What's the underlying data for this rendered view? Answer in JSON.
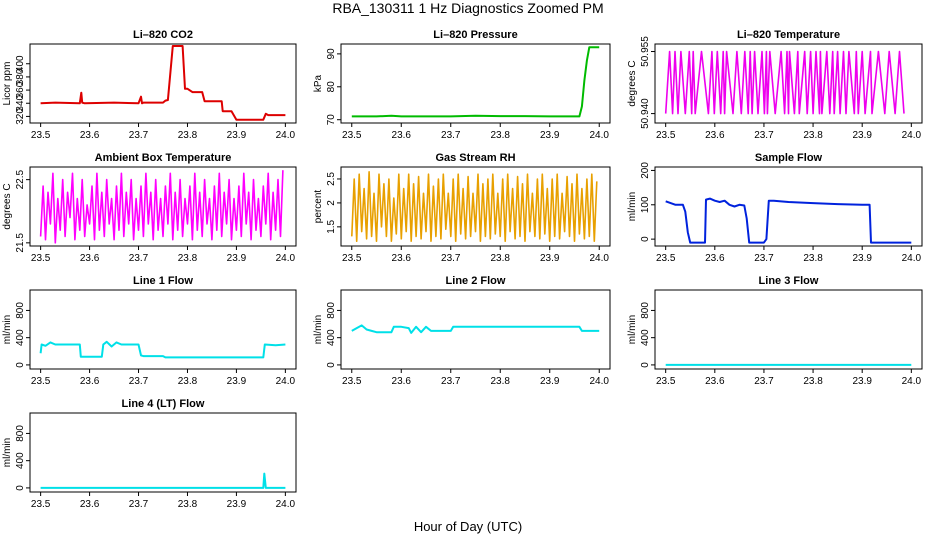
{
  "figure": {
    "title": "RBA_130311  1 Hz Diagnostics Zoomed PM",
    "xlabel": "Hour of Day (UTC)"
  },
  "chart_data": [
    {
      "type": "line",
      "title": "Li–820 CO2",
      "ylabel": "Licor ppm",
      "color": "#dd0000",
      "xlim": [
        23.5,
        24.0
      ],
      "ylim": [
        310,
        430
      ],
      "xticks": [
        "23.5",
        "23.6",
        "23.7",
        "23.8",
        "23.9",
        "24.0"
      ],
      "yticks": [
        320,
        340,
        360,
        380,
        400
      ],
      "x": [
        23.5,
        23.53,
        23.58,
        23.583,
        23.585,
        23.59,
        23.65,
        23.7,
        23.705,
        23.707,
        23.71,
        23.74,
        23.75,
        23.755,
        23.76,
        23.77,
        23.79,
        23.795,
        23.8,
        23.81,
        23.83,
        23.835,
        23.86,
        23.87,
        23.872,
        23.89,
        23.9,
        23.95,
        23.955,
        23.96,
        23.965,
        23.98,
        24.0
      ],
      "y": [
        340,
        341,
        340,
        356,
        341,
        340,
        341,
        340,
        350,
        340,
        341,
        341,
        341,
        344,
        345,
        427,
        427,
        362,
        362,
        357,
        357,
        343,
        343,
        343,
        328,
        328,
        315,
        315,
        315,
        324,
        322,
        322,
        322
      ]
    },
    {
      "type": "line",
      "title": "Li–820 Pressure",
      "ylabel": "kPa",
      "color": "#00bb00",
      "xlim": [
        23.5,
        24.0
      ],
      "ylim": [
        69,
        93
      ],
      "xticks": [
        "23.5",
        "23.6",
        "23.7",
        "23.8",
        "23.9",
        "24.0"
      ],
      "yticks": [
        70,
        80,
        90
      ],
      "x": [
        23.5,
        23.55,
        23.58,
        23.6,
        23.65,
        23.7,
        23.75,
        23.8,
        23.85,
        23.9,
        23.95,
        23.96,
        23.965,
        23.97,
        23.975,
        23.98,
        24.0
      ],
      "y": [
        71,
        71,
        71.2,
        71,
        71,
        71,
        71.2,
        71.1,
        71.1,
        71,
        71,
        71,
        74,
        82,
        88,
        92,
        92
      ]
    },
    {
      "type": "line",
      "title": "Li–820 Temperature",
      "ylabel": "degrees C",
      "color": "#ee00ee",
      "xlim": [
        23.5,
        24.0
      ],
      "ylim": [
        50.937,
        50.958
      ],
      "xticks": [
        "23.5",
        "23.6",
        "23.7",
        "23.8",
        "23.9",
        "24.0"
      ],
      "yticks": [
        "50.940",
        "50.955"
      ],
      "levels": [
        50.9395,
        50.956
      ],
      "x": [
        23.5,
        23.508,
        23.514,
        23.519,
        23.525,
        23.531,
        23.54,
        23.548,
        23.553,
        23.556,
        23.56,
        23.573,
        23.587,
        23.594,
        23.599,
        23.605,
        23.612,
        23.617,
        23.62,
        23.624,
        23.637,
        23.645,
        23.654,
        23.661,
        23.668,
        23.672,
        23.676,
        23.681,
        23.688,
        23.696,
        23.701,
        23.705,
        23.707,
        23.712,
        23.723,
        23.735,
        23.742,
        23.747,
        23.75,
        23.752,
        23.762,
        23.769,
        23.772,
        23.783,
        23.788,
        23.795,
        23.8,
        23.806,
        23.813,
        23.815,
        23.818,
        23.828,
        23.834,
        23.84,
        23.843,
        23.85,
        23.855,
        23.862,
        23.867,
        23.873,
        23.884,
        23.888,
        23.892,
        23.9,
        23.906,
        23.917,
        23.92,
        23.933,
        23.946,
        23.955,
        23.967,
        23.976,
        23.985
      ],
      "y": [
        50.9395,
        50.956,
        50.9395,
        50.956,
        50.9395,
        50.956,
        50.9395,
        50.956,
        50.9395,
        50.956,
        50.9395,
        50.956,
        50.9395,
        50.956,
        50.9395,
        50.956,
        50.9395,
        50.956,
        50.9395,
        50.956,
        50.9395,
        50.956,
        50.9395,
        50.956,
        50.9395,
        50.956,
        50.9395,
        50.956,
        50.9395,
        50.956,
        50.9395,
        50.956,
        50.9395,
        50.956,
        50.9395,
        50.956,
        50.9395,
        50.956,
        50.9395,
        50.956,
        50.9395,
        50.956,
        50.9395,
        50.956,
        50.9395,
        50.956,
        50.9395,
        50.956,
        50.9395,
        50.956,
        50.9395,
        50.956,
        50.9395,
        50.956,
        50.9395,
        50.956,
        50.9395,
        50.956,
        50.9395,
        50.956,
        50.9395,
        50.956,
        50.9395,
        50.956,
        50.9395,
        50.956,
        50.9395,
        50.956,
        50.9395,
        50.956,
        50.9395,
        50.956,
        50.9395
      ]
    },
    {
      "type": "line",
      "title": "Ambient Box Temperature",
      "ylabel": "degrees C",
      "color": "#ff00ff",
      "xlim": [
        23.5,
        24.0
      ],
      "ylim": [
        21.45,
        22.7
      ],
      "xticks": [
        "23.5",
        "23.6",
        "23.7",
        "23.8",
        "23.9",
        "24.0"
      ],
      "yticks": [
        21.5,
        22.5
      ],
      "x": [
        23.5,
        23.505,
        23.51,
        23.515,
        23.52,
        23.525,
        23.53,
        23.535,
        23.54,
        23.545,
        23.55,
        23.555,
        23.56,
        23.565,
        23.57,
        23.575,
        23.58,
        23.585,
        23.59,
        23.595,
        23.6,
        23.605,
        23.61,
        23.615,
        23.62,
        23.625,
        23.63,
        23.635,
        23.64,
        23.645,
        23.65,
        23.655,
        23.66,
        23.665,
        23.67,
        23.675,
        23.68,
        23.685,
        23.69,
        23.695,
        23.7,
        23.705,
        23.71,
        23.715,
        23.72,
        23.725,
        23.73,
        23.735,
        23.74,
        23.745,
        23.75,
        23.755,
        23.76,
        23.765,
        23.77,
        23.775,
        23.78,
        23.785,
        23.79,
        23.795,
        23.8,
        23.805,
        23.81,
        23.815,
        23.82,
        23.825,
        23.83,
        23.835,
        23.84,
        23.845,
        23.85,
        23.855,
        23.86,
        23.865,
        23.87,
        23.875,
        23.88,
        23.885,
        23.89,
        23.895,
        23.9,
        23.905,
        23.91,
        23.915,
        23.92,
        23.925,
        23.93,
        23.935,
        23.94,
        23.945,
        23.95,
        23.955,
        23.96,
        23.965,
        23.97,
        23.975,
        23.98,
        23.985,
        23.99,
        23.995
      ],
      "y": [
        21.6,
        22.4,
        21.55,
        22.3,
        21.8,
        22.6,
        21.5,
        22.2,
        21.7,
        22.5,
        21.6,
        22.3,
        21.9,
        22.6,
        21.55,
        22.2,
        21.7,
        22.5,
        21.6,
        22.1,
        21.8,
        22.4,
        21.55,
        22.6,
        21.7,
        22.3,
        21.6,
        22.5,
        21.8,
        22.2,
        21.55,
        22.4,
        21.7,
        22.6,
        21.6,
        22.3,
        21.8,
        22.5,
        21.55,
        22.2,
        21.7,
        22.4,
        21.6,
        22.6,
        21.8,
        22.3,
        21.55,
        22.5,
        21.7,
        22.2,
        21.6,
        22.4,
        21.8,
        22.6,
        21.55,
        22.3,
        21.7,
        22.5,
        21.6,
        22.2,
        21.8,
        22.4,
        21.55,
        22.6,
        21.7,
        22.3,
        21.6,
        22.5,
        21.8,
        22.2,
        21.55,
        22.4,
        21.7,
        22.6,
        21.6,
        22.3,
        21.8,
        22.5,
        21.55,
        22.2,
        21.7,
        22.4,
        21.6,
        22.6,
        21.8,
        22.3,
        21.55,
        22.5,
        21.7,
        22.2,
        21.6,
        22.4,
        21.8,
        22.6,
        21.55,
        22.3,
        21.7,
        22.5,
        21.6,
        22.65
      ]
    },
    {
      "type": "line",
      "title": "Gas Stream RH",
      "ylabel": "percent",
      "color": "#e8a000",
      "xlim": [
        23.5,
        24.0
      ],
      "ylim": [
        1.1,
        2.75
      ],
      "xticks": [
        "23.5",
        "23.6",
        "23.7",
        "23.8",
        "23.9",
        "24.0"
      ],
      "yticks": [
        1.5,
        2.0,
        2.5
      ],
      "x": [
        23.5,
        23.505,
        23.51,
        23.515,
        23.52,
        23.525,
        23.53,
        23.535,
        23.54,
        23.545,
        23.55,
        23.555,
        23.56,
        23.565,
        23.57,
        23.575,
        23.58,
        23.585,
        23.59,
        23.595,
        23.6,
        23.605,
        23.61,
        23.615,
        23.62,
        23.625,
        23.63,
        23.635,
        23.64,
        23.645,
        23.65,
        23.655,
        23.66,
        23.665,
        23.67,
        23.675,
        23.68,
        23.685,
        23.69,
        23.695,
        23.7,
        23.705,
        23.71,
        23.715,
        23.72,
        23.725,
        23.73,
        23.735,
        23.74,
        23.745,
        23.75,
        23.755,
        23.76,
        23.765,
        23.77,
        23.775,
        23.78,
        23.785,
        23.79,
        23.795,
        23.8,
        23.805,
        23.81,
        23.815,
        23.82,
        23.825,
        23.83,
        23.835,
        23.84,
        23.845,
        23.85,
        23.855,
        23.86,
        23.865,
        23.87,
        23.875,
        23.88,
        23.885,
        23.89,
        23.895,
        23.9,
        23.905,
        23.91,
        23.915,
        23.92,
        23.925,
        23.93,
        23.935,
        23.94,
        23.945,
        23.95,
        23.955,
        23.96,
        23.965,
        23.97,
        23.975,
        23.98,
        23.985,
        23.99,
        23.995
      ],
      "y": [
        1.3,
        2.5,
        1.2,
        2.6,
        1.4,
        2.3,
        1.25,
        2.65,
        1.3,
        2.2,
        1.2,
        2.6,
        1.5,
        2.4,
        1.3,
        2.5,
        1.2,
        2.1,
        1.35,
        2.6,
        1.25,
        2.3,
        1.4,
        2.6,
        1.2,
        2.4,
        1.3,
        2.55,
        1.25,
        2.2,
        1.4,
        2.6,
        1.2,
        2.35,
        1.3,
        2.5,
        1.25,
        2.6,
        1.45,
        2.2,
        1.3,
        2.5,
        1.2,
        2.6,
        1.35,
        2.3,
        1.25,
        2.55,
        1.3,
        2.2,
        1.4,
        2.6,
        1.2,
        2.4,
        1.3,
        2.5,
        1.25,
        2.6,
        1.35,
        2.2,
        1.3,
        2.5,
        1.2,
        2.6,
        1.4,
        2.3,
        1.25,
        2.55,
        1.3,
        2.4,
        1.2,
        2.6,
        1.4,
        2.2,
        1.3,
        2.5,
        1.25,
        2.6,
        1.35,
        2.3,
        1.2,
        2.5,
        1.3,
        2.6,
        1.25,
        2.2,
        1.4,
        2.55,
        1.3,
        2.4,
        1.2,
        2.6,
        1.35,
        2.3,
        1.25,
        2.5,
        1.3,
        2.6,
        1.2,
        2.45
      ]
    },
    {
      "type": "line",
      "title": "Sample Flow",
      "ylabel": "ml/min",
      "color": "#0022dd",
      "xlim": [
        23.5,
        24.0
      ],
      "ylim": [
        -20,
        210
      ],
      "xticks": [
        "23.5",
        "23.6",
        "23.7",
        "23.8",
        "23.9",
        "24.0"
      ],
      "yticks": [
        0,
        100,
        200
      ],
      "x": [
        23.5,
        23.51,
        23.52,
        23.535,
        23.54,
        23.545,
        23.55,
        23.58,
        23.582,
        23.59,
        23.6,
        23.61,
        23.62,
        23.63,
        23.64,
        23.65,
        23.66,
        23.665,
        23.67,
        23.7,
        23.705,
        23.71,
        23.72,
        23.75,
        23.8,
        23.85,
        23.9,
        23.915,
        23.918,
        23.95,
        24.0
      ],
      "y": [
        110,
        105,
        100,
        100,
        80,
        20,
        -10,
        -10,
        115,
        118,
        112,
        108,
        112,
        100,
        95,
        100,
        98,
        60,
        -10,
        -10,
        0,
        112,
        112,
        108,
        105,
        102,
        100,
        100,
        -10,
        -10,
        -10
      ]
    },
    {
      "type": "line",
      "title": "Line 1 Flow",
      "ylabel": "ml/min",
      "color": "#00e0e8",
      "xlim": [
        23.5,
        24.0
      ],
      "ylim": [
        -60,
        1100
      ],
      "xticks": [
        "23.5",
        "23.6",
        "23.7",
        "23.8",
        "23.9",
        "24.0"
      ],
      "yticks": [
        0,
        400,
        800
      ],
      "x": [
        23.5,
        23.502,
        23.51,
        23.52,
        23.53,
        23.55,
        23.58,
        23.582,
        23.625,
        23.628,
        23.635,
        23.645,
        23.655,
        23.665,
        23.7,
        23.705,
        23.71,
        23.75,
        23.755,
        23.8,
        23.9,
        23.955,
        23.958,
        23.98,
        24.0
      ],
      "y": [
        170,
        300,
        280,
        330,
        300,
        300,
        300,
        120,
        120,
        300,
        340,
        270,
        330,
        300,
        300,
        140,
        130,
        130,
        110,
        110,
        110,
        110,
        300,
        290,
        300
      ]
    },
    {
      "type": "line",
      "title": "Line 2 Flow",
      "ylabel": "ml/min",
      "color": "#00e0e8",
      "xlim": [
        23.5,
        24.0
      ],
      "ylim": [
        -60,
        1100
      ],
      "xticks": [
        "23.5",
        "23.6",
        "23.7",
        "23.8",
        "23.9",
        "24.0"
      ],
      "yticks": [
        0,
        400,
        800
      ],
      "x": [
        23.5,
        23.51,
        23.52,
        23.53,
        23.54,
        23.55,
        23.58,
        23.585,
        23.6,
        23.615,
        23.62,
        23.63,
        23.64,
        23.65,
        23.66,
        23.7,
        23.705,
        23.8,
        23.9,
        23.96,
        23.965,
        24.0
      ],
      "y": [
        500,
        540,
        580,
        520,
        500,
        480,
        480,
        560,
        560,
        540,
        470,
        560,
        480,
        560,
        500,
        500,
        560,
        560,
        560,
        560,
        500,
        500
      ]
    },
    {
      "type": "line",
      "title": "Line 3 Flow",
      "ylabel": "ml/min",
      "color": "#00e0e8",
      "xlim": [
        23.5,
        24.0
      ],
      "ylim": [
        -60,
        1100
      ],
      "xticks": [
        "23.5",
        "23.6",
        "23.7",
        "23.8",
        "23.9",
        "24.0"
      ],
      "yticks": [
        0,
        400,
        800
      ],
      "x": [
        23.5,
        24.0
      ],
      "y": [
        0,
        0
      ]
    },
    {
      "type": "line",
      "title": "Line 4 (LT) Flow",
      "ylabel": "ml/min",
      "color": "#00e0e8",
      "xlim": [
        23.5,
        24.0
      ],
      "ylim": [
        -60,
        1100
      ],
      "xticks": [
        "23.5",
        "23.6",
        "23.7",
        "23.8",
        "23.9",
        "24.0"
      ],
      "yticks": [
        0,
        400,
        800
      ],
      "x": [
        23.5,
        23.955,
        23.957,
        23.96,
        23.963,
        24.0
      ],
      "y": [
        0,
        0,
        210,
        0,
        0,
        0
      ]
    }
  ]
}
